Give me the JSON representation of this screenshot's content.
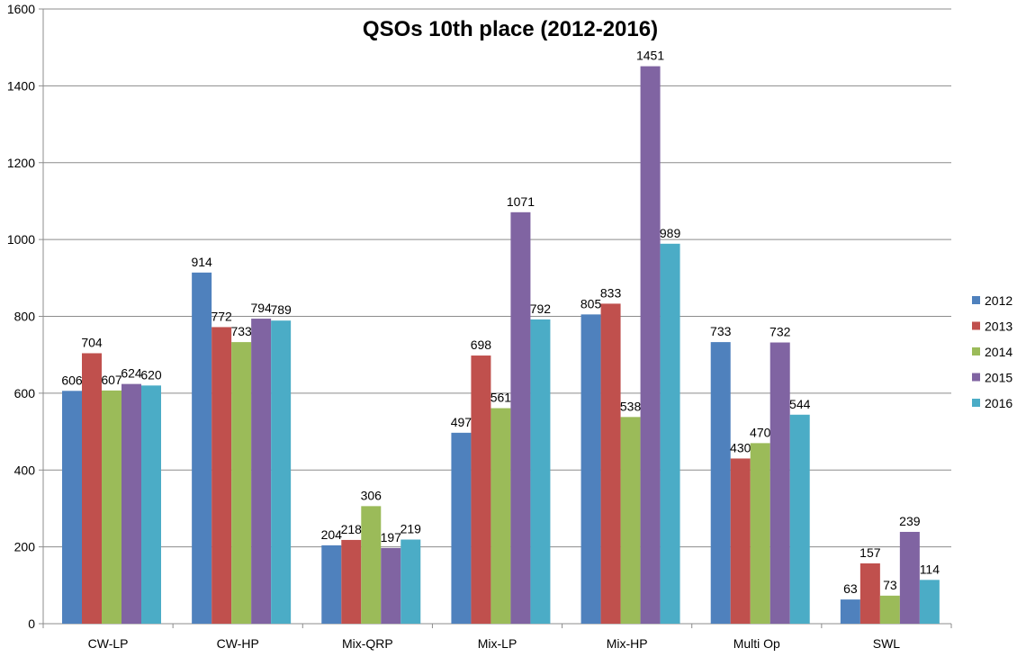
{
  "chart_data": {
    "type": "bar",
    "title": "QSOs 10th place (2012-2016)",
    "xlabel": "",
    "ylabel": "",
    "ylim": [
      0,
      1600
    ],
    "yticks": [
      0,
      200,
      400,
      600,
      800,
      1000,
      1200,
      1400,
      1600
    ],
    "grid": true,
    "legend_position": "right",
    "categories": [
      "CW-LP",
      "CW-HP",
      "Mix-QRP",
      "Mix-LP",
      "Mix-HP",
      "Multi Op",
      "SWL"
    ],
    "series": [
      {
        "name": "2012",
        "color": "#4F81BD",
        "values": [
          606,
          914,
          204,
          497,
          805,
          733,
          63
        ]
      },
      {
        "name": "2013",
        "color": "#C0504D",
        "values": [
          704,
          772,
          218,
          698,
          833,
          430,
          157
        ]
      },
      {
        "name": "2014",
        "color": "#9BBB59",
        "values": [
          607,
          733,
          306,
          561,
          538,
          470,
          73
        ]
      },
      {
        "name": "2015",
        "color": "#8064A2",
        "values": [
          624,
          794,
          197,
          1071,
          1451,
          732,
          239
        ]
      },
      {
        "name": "2016",
        "color": "#4BACC6",
        "values": [
          620,
          789,
          219,
          792,
          989,
          544,
          114
        ]
      }
    ]
  }
}
